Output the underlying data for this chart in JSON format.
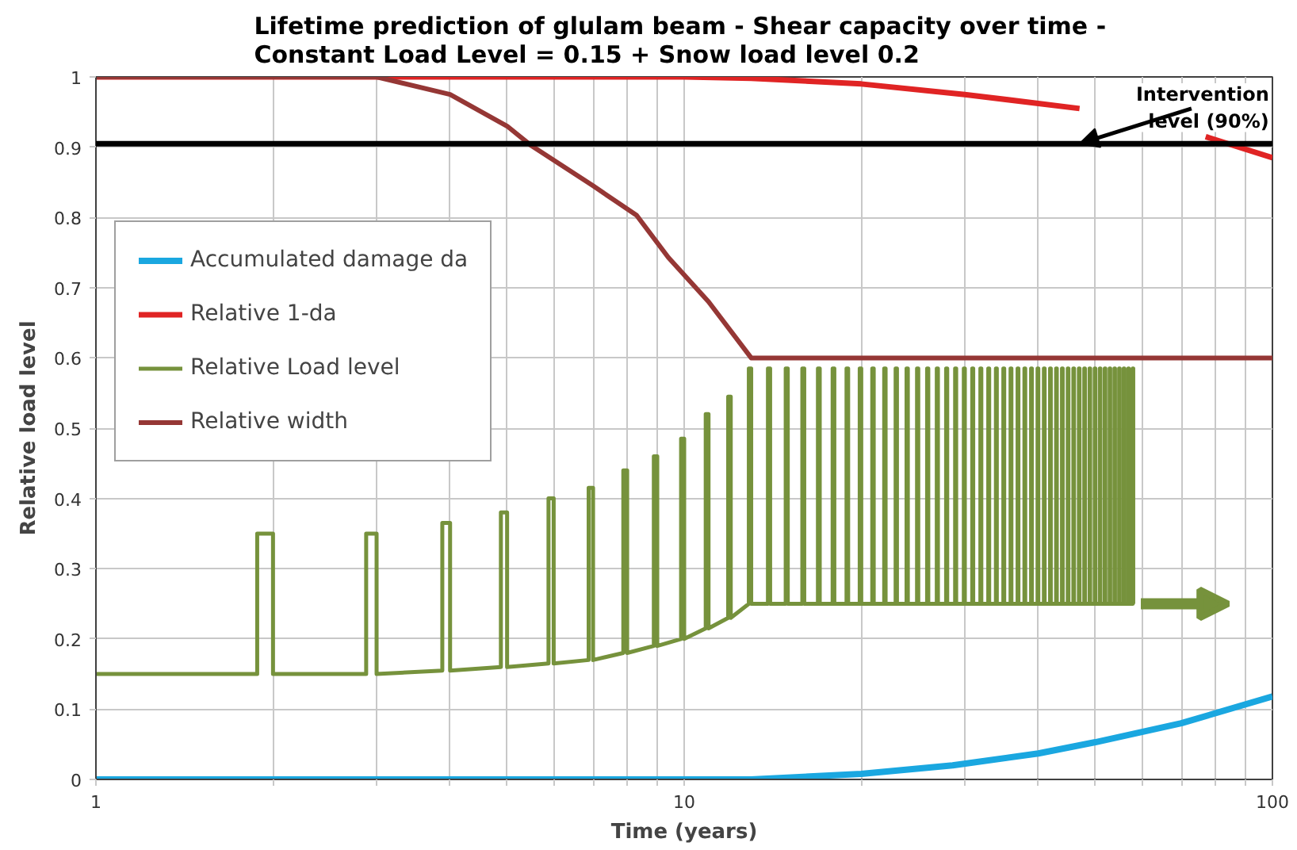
{
  "chart_data": {
    "type": "line",
    "title": "Lifetime prediction of glulam beam - Shear capacity over time  -\nConstant Load Level = 0.15 + Snow load level 0.2",
    "xlabel": "Time (years)",
    "ylabel": "Relative load level",
    "log": "x",
    "xlim": [
      1,
      100
    ],
    "ylim": [
      0,
      1
    ],
    "xticks": [
      1,
      {
        "value": 2,
        "label": null
      },
      {
        "value": 3,
        "label": null
      },
      {
        "value": 4,
        "label": null
      },
      {
        "value": 5,
        "label": null
      },
      {
        "value": 6,
        "label": null
      },
      {
        "value": 7,
        "label": null
      },
      {
        "value": 8,
        "label": null
      },
      {
        "value": 9,
        "label": null
      },
      10,
      {
        "value": 20,
        "label": null
      },
      {
        "value": 30,
        "label": null
      },
      {
        "value": 40,
        "label": null
      },
      {
        "value": 50,
        "label": null
      },
      {
        "value": 60,
        "label": null
      },
      {
        "value": 70,
        "label": null
      },
      {
        "value": 80,
        "label": null
      },
      {
        "value": 90,
        "label": null
      },
      100
    ],
    "yticks": [
      0,
      0.1,
      0.2,
      0.3,
      0.4,
      0.5,
      0.6,
      0.7,
      0.8,
      0.9,
      1
    ],
    "grid": true,
    "legend": "top left",
    "marker": "none",
    "line_style": "solid",
    "ref_lines": [
      {
        "axis": "y",
        "value": 0.905,
        "color": "#000000"
      }
    ],
    "annotations": [
      {
        "text": "Intervention\nlevel (90%)",
        "x": 47,
        "y": 0.905
      }
    ],
    "series": [
      {
        "name": "Accumulated damage da",
        "color": "#1aa7e0",
        "x": [
          1,
          13,
          20,
          28.6,
          40,
          50,
          70,
          100
        ],
        "values": [
          0,
          0,
          0.008,
          0.02,
          0.037,
          0.053,
          0.08,
          0.118
        ]
      },
      {
        "name": "Relative 1-da",
        "color": "#e02424",
        "x": [
          1,
          10,
          13,
          20,
          30,
          47,
          60,
          77,
          100
        ],
        "values": [
          1,
          1,
          0.998,
          0.99,
          0.975,
          0.955,
          null,
          0.915,
          0.885
        ]
      },
      {
        "name": "Relative Load level",
        "color": "#76923c",
        "x": [
          1,
          1.88,
          1.88,
          2,
          2,
          2.88,
          2.88,
          3,
          3,
          3.88,
          3.88,
          4,
          4,
          4.88,
          4.88,
          5,
          5,
          5.88,
          5.88,
          6,
          6,
          6.88,
          6.88,
          7,
          7,
          7.88,
          7.88,
          8,
          8,
          8.88,
          8.88,
          9,
          9,
          9.88,
          9.88,
          10,
          10,
          10.88,
          10.88,
          11,
          11,
          11.88,
          11.88,
          12,
          12,
          12.88,
          12.88,
          13,
          13,
          13.88,
          13.88,
          14,
          14,
          14.88,
          14.88,
          15,
          15,
          15.88,
          15.88,
          16,
          16,
          16.88,
          16.88,
          17,
          17,
          17.88,
          17.88,
          18,
          18,
          18.88,
          18.88,
          19,
          19,
          19.88,
          19.88,
          20,
          20,
          20.88,
          20.88,
          21,
          21,
          21.88,
          21.88,
          22,
          22,
          22.88,
          22.88,
          23,
          23,
          23.88,
          23.88,
          24,
          24,
          24.88,
          24.88,
          25,
          25,
          25.88,
          25.88,
          26,
          26,
          26.88,
          26.88,
          27,
          27,
          27.88,
          27.88,
          28,
          28,
          28.88,
          28.88,
          29,
          29,
          29.88,
          29.88,
          30,
          30,
          30.88,
          30.88,
          31,
          31,
          31.88,
          31.88,
          32,
          32,
          32.88,
          32.88,
          33,
          33,
          33.88,
          33.88,
          34,
          34,
          34.88,
          34.88,
          35,
          35,
          35.88,
          35.88,
          36,
          36,
          36.88,
          36.88,
          37,
          37,
          37.88,
          37.88,
          38,
          38,
          38.88,
          38.88,
          39,
          39,
          39.88,
          39.88,
          40,
          40,
          40.88,
          40.88,
          41,
          41,
          41.88,
          41.88,
          42,
          42,
          42.88,
          42.88,
          43,
          43,
          43.88,
          43.88,
          44,
          44,
          44.88,
          44.88,
          45,
          45,
          45.88,
          45.88,
          46,
          46,
          46.88,
          46.88,
          47,
          47,
          47.88,
          47.88,
          48,
          48,
          48.88,
          48.88,
          49,
          49,
          49.88,
          49.88,
          50,
          50,
          50.88,
          50.88,
          51,
          51,
          51.88,
          51.88,
          52,
          52,
          52.88,
          52.88,
          53,
          53,
          53.88,
          53.88,
          54,
          54,
          54.88,
          54.88,
          55,
          55,
          55.88,
          55.88,
          56,
          56,
          56.88,
          56.88,
          57,
          57,
          57.88,
          57.88,
          58,
          58
        ],
        "values": [
          0.15,
          0.15,
          0.35,
          0.35,
          0.15,
          0.15,
          0.35,
          0.35,
          0.15,
          0.155,
          0.365,
          0.365,
          0.155,
          0.16,
          0.38,
          0.38,
          0.16,
          0.165,
          0.4,
          0.4,
          0.165,
          0.17,
          0.415,
          0.415,
          0.17,
          0.18,
          0.44,
          0.44,
          0.18,
          0.19,
          0.46,
          0.46,
          0.19,
          0.2,
          0.485,
          0.485,
          0.2,
          0.215,
          0.52,
          0.52,
          0.215,
          0.23,
          0.545,
          0.545,
          0.23,
          0.25,
          0.585,
          0.585,
          0.25,
          0.25,
          0.585,
          0.585,
          0.25,
          0.25,
          0.585,
          0.585,
          0.25,
          0.25,
          0.585,
          0.585,
          0.25,
          0.25,
          0.585,
          0.585,
          0.25,
          0.25,
          0.585,
          0.585,
          0.25,
          0.25,
          0.585,
          0.585,
          0.25,
          0.25,
          0.585,
          0.585,
          0.25,
          0.25,
          0.585,
          0.585,
          0.25,
          0.25,
          0.585,
          0.585,
          0.25,
          0.25,
          0.585,
          0.585,
          0.25,
          0.25,
          0.585,
          0.585,
          0.25,
          0.25,
          0.585,
          0.585,
          0.25,
          0.25,
          0.585,
          0.585,
          0.25,
          0.25,
          0.585,
          0.585,
          0.25,
          0.25,
          0.585,
          0.585,
          0.25,
          0.25,
          0.585,
          0.585,
          0.25,
          0.25,
          0.585,
          0.585,
          0.25,
          0.25,
          0.585,
          0.585,
          0.25,
          0.25,
          0.585,
          0.585,
          0.25,
          0.25,
          0.585,
          0.585,
          0.25,
          0.25,
          0.585,
          0.585,
          0.25,
          0.25,
          0.585,
          0.585,
          0.25,
          0.25,
          0.585,
          0.585,
          0.25,
          0.25,
          0.585,
          0.585,
          0.25,
          0.25,
          0.585,
          0.585,
          0.25,
          0.25,
          0.585,
          0.585,
          0.25,
          0.25,
          0.585,
          0.585,
          0.25,
          0.25,
          0.585,
          0.585,
          0.25,
          0.25,
          0.585,
          0.585,
          0.25,
          0.25,
          0.585,
          0.585,
          0.25,
          0.25,
          0.585,
          0.585,
          0.25,
          0.25,
          0.585,
          0.585,
          0.25,
          0.25,
          0.585,
          0.585,
          0.25,
          0.25,
          0.585,
          0.585,
          0.25,
          0.25,
          0.585,
          0.585,
          0.25,
          0.25,
          0.585,
          0.585,
          0.25,
          0.25,
          0.585,
          0.585,
          0.25,
          0.25,
          0.585,
          0.585,
          0.25,
          0.25,
          0.585,
          0.585,
          0.25,
          0.25,
          0.585,
          0.585,
          0.25,
          0.25,
          0.585,
          0.585,
          0.25,
          0.25,
          0.585,
          0.585,
          0.25,
          0.25,
          0.585,
          0.585,
          0.25,
          0.25,
          0.585,
          0.585,
          0.25,
          0.25,
          0.585,
          0.585,
          0.25
        ]
      },
      {
        "name": "Relative width",
        "color": "#953735",
        "x": [
          1,
          3,
          4,
          5,
          5.5,
          7,
          8.3,
          9.4,
          11,
          13,
          100
        ],
        "values": [
          1,
          1,
          0.975,
          0.93,
          0.902,
          0.845,
          0.803,
          0.743,
          0.68,
          0.6,
          0.6
        ]
      }
    ]
  }
}
